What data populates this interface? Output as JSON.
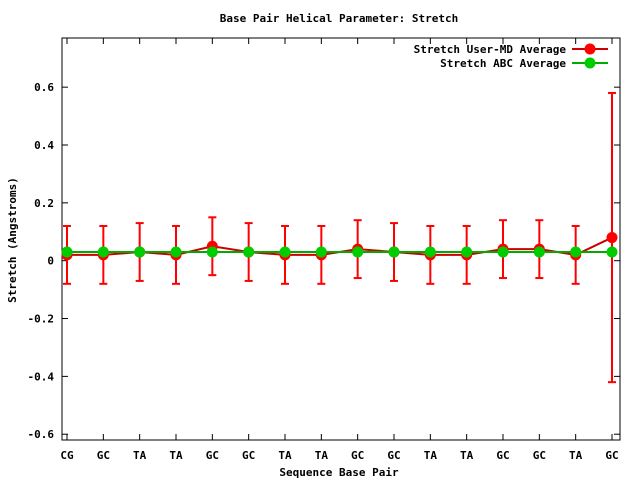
{
  "chart_data": {
    "type": "line",
    "title": "Base Pair Helical Parameter: Stretch",
    "xlabel": "Sequence Base Pair",
    "ylabel": "Stretch (Angstroms)",
    "categories": [
      "CG",
      "GC",
      "TA",
      "TA",
      "GC",
      "GC",
      "TA",
      "TA",
      "GC",
      "GC",
      "TA",
      "TA",
      "GC",
      "GC",
      "TA",
      "GC"
    ],
    "ylim": [
      -0.62,
      0.77
    ],
    "yticks": [
      -0.6,
      -0.4,
      -0.2,
      0,
      0.2,
      0.4,
      0.6
    ],
    "ytick_labels": [
      "-0.6",
      "-0.4",
      "-0.2",
      "0",
      "0.2",
      "0.4",
      "0.6"
    ],
    "grid": false,
    "legend_position": "top-right",
    "series": [
      {
        "name": "Stretch User-MD Average",
        "color": "#ff0000",
        "line_color": "#cc0000",
        "values": [
          0.02,
          0.02,
          0.03,
          0.02,
          0.05,
          0.03,
          0.02,
          0.02,
          0.04,
          0.03,
          0.02,
          0.02,
          0.04,
          0.04,
          0.02,
          0.08
        ],
        "error": [
          0.1,
          0.1,
          0.1,
          0.1,
          0.1,
          0.1,
          0.1,
          0.1,
          0.1,
          0.1,
          0.1,
          0.1,
          0.1,
          0.1,
          0.1,
          0.5
        ]
      },
      {
        "name": "Stretch ABC Average",
        "color": "#00cc00",
        "line_color": "#00aa00",
        "values": [
          0.03,
          0.03,
          0.03,
          0.03,
          0.03,
          0.03,
          0.03,
          0.03,
          0.03,
          0.03,
          0.03,
          0.03,
          0.03,
          0.03,
          0.03,
          0.03
        ]
      }
    ]
  }
}
